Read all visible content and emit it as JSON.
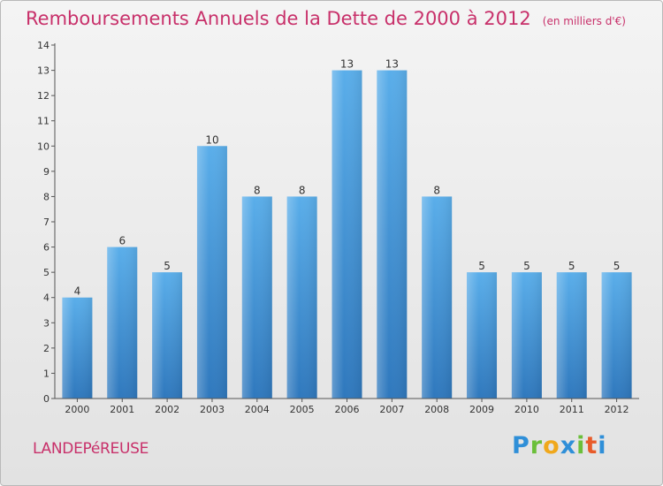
{
  "chart_data": {
    "type": "bar",
    "title": "Remboursements Annuels de la Dette de 2000 à 2012",
    "subtitle": "(en milliers d'€)",
    "categories": [
      "2000",
      "2001",
      "2002",
      "2003",
      "2004",
      "2005",
      "2006",
      "2007",
      "2008",
      "2009",
      "2010",
      "2011",
      "2012"
    ],
    "values": [
      4,
      6,
      5,
      10,
      8,
      8,
      13,
      13,
      8,
      5,
      5,
      5,
      5
    ],
    "ylim": [
      0,
      14
    ],
    "yticks": [
      0,
      1,
      2,
      3,
      4,
      5,
      6,
      7,
      8,
      9,
      10,
      11,
      12,
      13,
      14
    ],
    "grid": false,
    "bar_color": "#3d8fd6"
  },
  "footer": {
    "commune": "LANDEPéREUSE",
    "logo_letters": [
      {
        "ch": "P",
        "color": "#2f8fd8"
      },
      {
        "ch": "r",
        "color": "#6bbf3a"
      },
      {
        "ch": "o",
        "color": "#f0a81c"
      },
      {
        "ch": "x",
        "color": "#2f8fd8"
      },
      {
        "ch": "i",
        "color": "#6bbf3a"
      },
      {
        "ch": "t",
        "color": "#e85b2a"
      },
      {
        "ch": "i",
        "color": "#2f8fd8"
      }
    ]
  }
}
